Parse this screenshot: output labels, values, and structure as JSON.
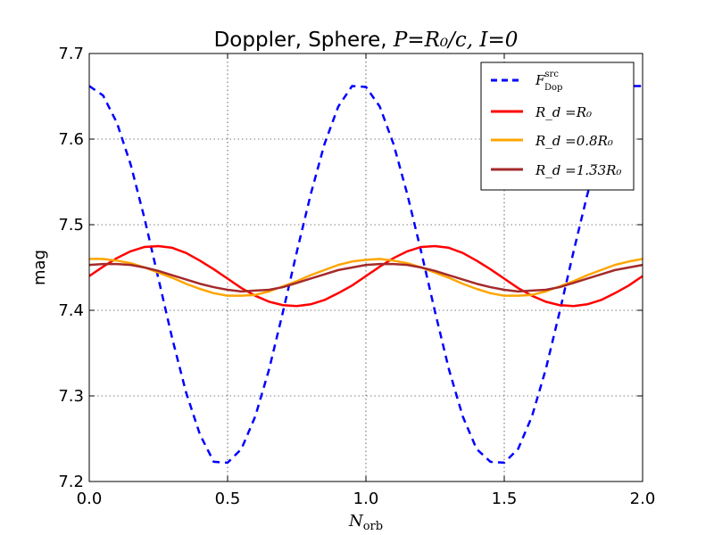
{
  "chart_data": {
    "type": "line",
    "title": "Doppler, Sphere, P=R0/c, I=0",
    "title_text": "Doppler, Sphere,",
    "title_math": "P=R₀/c, I=0",
    "xlabel": "N_orb",
    "xlabel_main": "N",
    "xlabel_sub": "orb",
    "ylabel": "mag",
    "xlim": [
      0.0,
      2.0
    ],
    "ylim": [
      7.2,
      7.7
    ],
    "xticks": [
      0.0,
      0.5,
      1.0,
      1.5,
      2.0
    ],
    "xtick_labels": [
      "0.0",
      "0.5",
      "1.0",
      "1.5",
      "2.0"
    ],
    "yticks": [
      7.2,
      7.3,
      7.4,
      7.5,
      7.6,
      7.7
    ],
    "ytick_labels": [
      "7.2",
      "7.3",
      "7.4",
      "7.5",
      "7.6",
      "7.7"
    ],
    "grid": true,
    "legend_position": "top-right",
    "x": [
      0.0,
      0.05,
      0.1,
      0.15,
      0.2,
      0.25,
      0.3,
      0.35,
      0.4,
      0.45,
      0.5,
      0.55,
      0.6,
      0.65,
      0.7,
      0.75,
      0.8,
      0.85,
      0.9,
      0.95,
      1.0,
      1.05,
      1.1,
      1.15,
      1.2,
      1.25,
      1.3,
      1.35,
      1.4,
      1.45,
      1.5,
      1.55,
      1.6,
      1.65,
      1.7,
      1.75,
      1.8,
      1.85,
      1.9,
      1.95,
      2.0
    ],
    "series": [
      {
        "name": "F_Dop^src",
        "legend_main": "F",
        "legend_sub": "Dop",
        "legend_sup": "src",
        "color": "#0000ff",
        "dashed": true,
        "values": [
          7.662,
          7.651,
          7.619,
          7.57,
          7.507,
          7.437,
          7.367,
          7.304,
          7.255,
          7.223,
          7.222,
          7.238,
          7.276,
          7.331,
          7.398,
          7.468,
          7.535,
          7.594,
          7.638,
          7.662,
          7.661,
          7.638,
          7.594,
          7.535,
          7.468,
          7.398,
          7.331,
          7.276,
          7.238,
          7.223,
          7.222,
          7.238,
          7.276,
          7.331,
          7.398,
          7.468,
          7.535,
          7.594,
          7.638,
          7.662,
          7.662
        ]
      },
      {
        "name": "R_d = R_0",
        "legend_text": "R_d =R₀",
        "color": "#ff0000",
        "dashed": false,
        "values": [
          7.44,
          7.451,
          7.461,
          7.469,
          7.474,
          7.475,
          7.473,
          7.467,
          7.458,
          7.448,
          7.437,
          7.426,
          7.417,
          7.41,
          7.406,
          7.405,
          7.407,
          7.412,
          7.42,
          7.429,
          7.44,
          7.451,
          7.461,
          7.469,
          7.474,
          7.475,
          7.473,
          7.467,
          7.458,
          7.448,
          7.437,
          7.426,
          7.417,
          7.41,
          7.406,
          7.405,
          7.407,
          7.412,
          7.42,
          7.429,
          7.44
        ]
      },
      {
        "name": "R_d = 0.8 R_0",
        "legend_text": "R_d =0.8R₀",
        "color": "#ffa500",
        "dashed": false,
        "values": [
          7.46,
          7.46,
          7.458,
          7.455,
          7.45,
          7.444,
          7.438,
          7.431,
          7.425,
          7.42,
          7.417,
          7.417,
          7.418,
          7.422,
          7.428,
          7.434,
          7.441,
          7.447,
          7.453,
          7.457,
          7.459,
          7.46,
          7.458,
          7.455,
          7.45,
          7.444,
          7.438,
          7.431,
          7.425,
          7.42,
          7.417,
          7.417,
          7.418,
          7.422,
          7.428,
          7.434,
          7.441,
          7.447,
          7.453,
          7.457,
          7.46
        ]
      },
      {
        "name": "R_d = 1.33 R_0",
        "legend_text": "R_d =1.3̅3R₀",
        "color": "#a52a2a",
        "dashed": false,
        "values": [
          7.453,
          7.454,
          7.454,
          7.453,
          7.45,
          7.446,
          7.441,
          7.436,
          7.431,
          7.427,
          7.424,
          7.422,
          7.423,
          7.424,
          7.427,
          7.432,
          7.437,
          7.442,
          7.447,
          7.45,
          7.453,
          7.454,
          7.454,
          7.453,
          7.45,
          7.446,
          7.441,
          7.436,
          7.431,
          7.427,
          7.424,
          7.422,
          7.423,
          7.424,
          7.427,
          7.432,
          7.437,
          7.442,
          7.447,
          7.45,
          7.453
        ]
      }
    ]
  }
}
